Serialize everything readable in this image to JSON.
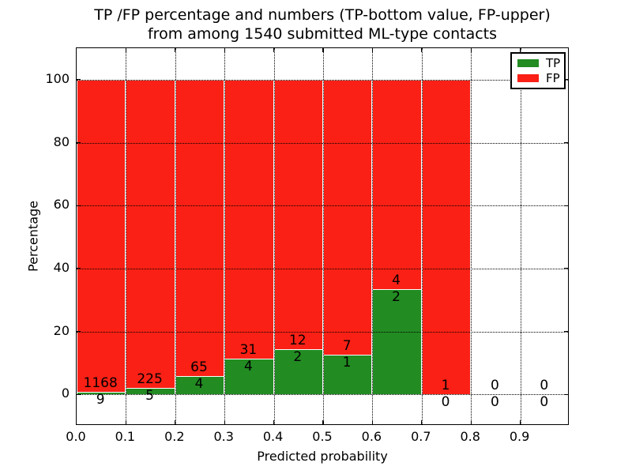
{
  "title": {
    "line1": "TP /FP percentage and numbers (TP-bottom value, FP-upper)",
    "line2": "from among 1540 submitted ML-type contacts"
  },
  "axes": {
    "ylabel": "Percentage",
    "xlabel": "Predicted probability"
  },
  "legend": {
    "items": [
      {
        "label": "TP",
        "color": "#228b22"
      },
      {
        "label": "FP",
        "color": "#fa2015"
      }
    ],
    "position": "upper right"
  },
  "chart_data": {
    "type": "bar",
    "stacked": true,
    "normalized_to_percent": true,
    "title": "TP /FP percentage and numbers (TP-bottom value, FP-upper) from among 1540 submitted ML-type contacts",
    "xlabel": "Predicted probability",
    "ylabel": "Percentage",
    "xlim": [
      0.0,
      1.0
    ],
    "ylim": [
      -10,
      110
    ],
    "x_ticks": [
      "0.0",
      "0.1",
      "0.2",
      "0.3",
      "0.4",
      "0.5",
      "0.6",
      "0.7",
      "0.8",
      "0.9"
    ],
    "x_tick_values": [
      0.0,
      0.1,
      0.2,
      0.3,
      0.4,
      0.5,
      0.6,
      0.7,
      0.8,
      0.9
    ],
    "y_ticks": [
      0,
      20,
      40,
      60,
      80,
      100
    ],
    "grid": "dotted",
    "legend_position": "upper right",
    "total_contacts": 1540,
    "colors": {
      "tp": "#228b22",
      "fp": "#fa2015",
      "bar_edge": "#ffffff"
    },
    "bins": [
      {
        "range": [
          0.0,
          0.1
        ],
        "tp": 9,
        "fp": 1168,
        "tp_pct": 0.76,
        "fp_pct": 99.24
      },
      {
        "range": [
          0.1,
          0.2
        ],
        "tp": 5,
        "fp": 225,
        "tp_pct": 2.17,
        "fp_pct": 97.83
      },
      {
        "range": [
          0.2,
          0.3
        ],
        "tp": 4,
        "fp": 65,
        "tp_pct": 5.8,
        "fp_pct": 94.2
      },
      {
        "range": [
          0.3,
          0.4
        ],
        "tp": 4,
        "fp": 31,
        "tp_pct": 11.43,
        "fp_pct": 88.57
      },
      {
        "range": [
          0.4,
          0.5
        ],
        "tp": 2,
        "fp": 12,
        "tp_pct": 14.29,
        "fp_pct": 85.71
      },
      {
        "range": [
          0.5,
          0.6
        ],
        "tp": 1,
        "fp": 7,
        "tp_pct": 12.5,
        "fp_pct": 87.5
      },
      {
        "range": [
          0.6,
          0.7
        ],
        "tp": 2,
        "fp": 4,
        "tp_pct": 33.33,
        "fp_pct": 66.67
      },
      {
        "range": [
          0.7,
          0.8
        ],
        "tp": 0,
        "fp": 1,
        "tp_pct": 0.0,
        "fp_pct": 100.0
      },
      {
        "range": [
          0.8,
          0.9
        ],
        "tp": 0,
        "fp": 0,
        "tp_pct": null,
        "fp_pct": null
      },
      {
        "range": [
          0.9,
          1.0
        ],
        "tp": 0,
        "fp": 0,
        "tp_pct": null,
        "fp_pct": null
      }
    ],
    "series": [
      {
        "name": "TP",
        "values_pct": [
          0.76,
          2.17,
          5.8,
          11.43,
          14.29,
          12.5,
          33.33,
          0.0,
          null,
          null
        ],
        "counts": [
          9,
          5,
          4,
          4,
          2,
          1,
          2,
          0,
          0,
          0
        ]
      },
      {
        "name": "FP",
        "values_pct": [
          99.24,
          97.83,
          94.2,
          88.57,
          85.71,
          87.5,
          66.67,
          100.0,
          null,
          null
        ],
        "counts": [
          1168,
          225,
          65,
          31,
          12,
          7,
          4,
          1,
          0,
          0
        ]
      }
    ]
  }
}
